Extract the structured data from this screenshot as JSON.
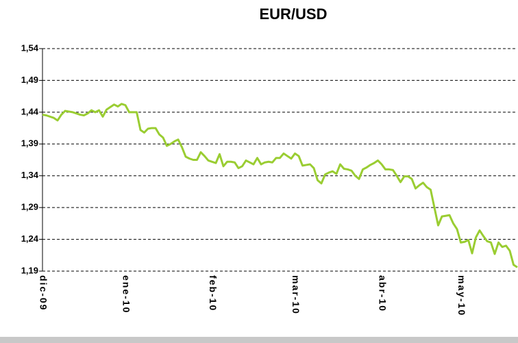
{
  "chart_data": {
    "type": "line",
    "title": "EUR/USD",
    "categories": [
      "dic-09",
      null,
      null,
      null,
      null,
      null,
      null,
      null,
      null,
      null,
      null,
      null,
      null,
      null,
      null,
      null,
      null,
      null,
      null,
      null,
      null,
      null,
      "ene-10",
      null,
      null,
      null,
      null,
      null,
      null,
      null,
      null,
      null,
      null,
      null,
      null,
      null,
      null,
      null,
      null,
      null,
      null,
      null,
      null,
      null,
      null,
      "feb-10",
      null,
      null,
      null,
      null,
      null,
      null,
      null,
      null,
      null,
      null,
      null,
      null,
      null,
      null,
      null,
      null,
      null,
      null,
      null,
      null,
      null,
      "mar-10",
      null,
      null,
      null,
      null,
      null,
      null,
      null,
      null,
      null,
      null,
      null,
      null,
      null,
      null,
      null,
      null,
      null,
      null,
      null,
      null,
      null,
      null,
      "abr-10",
      null,
      null,
      null,
      null,
      null,
      null,
      null,
      null,
      null,
      null,
      null,
      null,
      null,
      null,
      null,
      null,
      null,
      null,
      null,
      null,
      "may-10",
      null,
      null,
      null,
      null,
      null,
      null,
      null,
      null,
      null,
      null,
      null,
      null,
      null,
      null,
      null
    ],
    "series": [
      {
        "name": "EUR/USD",
        "color": "#9acd32",
        "values": [
          1.436,
          1.435,
          1.433,
          1.431,
          1.427,
          1.436,
          1.442,
          1.441,
          1.44,
          1.438,
          1.436,
          1.435,
          1.438,
          1.443,
          1.44,
          1.443,
          1.433,
          1.444,
          1.448,
          1.452,
          1.449,
          1.453,
          1.451,
          1.44,
          1.44,
          1.44,
          1.412,
          1.408,
          1.414,
          1.415,
          1.415,
          1.405,
          1.4,
          1.387,
          1.39,
          1.394,
          1.397,
          1.385,
          1.37,
          1.367,
          1.365,
          1.365,
          1.377,
          1.371,
          1.364,
          1.362,
          1.36,
          1.374,
          1.355,
          1.362,
          1.362,
          1.361,
          1.352,
          1.355,
          1.364,
          1.361,
          1.358,
          1.368,
          1.358,
          1.361,
          1.362,
          1.361,
          1.368,
          1.368,
          1.375,
          1.371,
          1.367,
          1.375,
          1.371,
          1.356,
          1.357,
          1.358,
          1.352,
          1.333,
          1.328,
          1.342,
          1.345,
          1.347,
          1.343,
          1.358,
          1.351,
          1.35,
          1.348,
          1.34,
          1.335,
          1.35,
          1.353,
          1.357,
          1.36,
          1.364,
          1.358,
          1.35,
          1.35,
          1.349,
          1.34,
          1.33,
          1.339,
          1.339,
          1.335,
          1.32,
          1.325,
          1.329,
          1.322,
          1.318,
          1.29,
          1.262,
          1.276,
          1.277,
          1.278,
          1.265,
          1.256,
          1.235,
          1.236,
          1.239,
          1.218,
          1.243,
          1.254,
          1.245,
          1.237,
          1.235,
          1.217,
          1.235,
          1.228,
          1.23,
          1.222,
          1.2,
          1.196
        ]
      }
    ],
    "ylim": [
      1.19,
      1.54
    ],
    "yticks": [
      {
        "value": 1.19,
        "label": "1,19"
      },
      {
        "value": 1.24,
        "label": "1,24"
      },
      {
        "value": 1.29,
        "label": "1,29"
      },
      {
        "value": 1.34,
        "label": "1,34"
      },
      {
        "value": 1.39,
        "label": "1,39"
      },
      {
        "value": 1.44,
        "label": "1,44"
      },
      {
        "value": 1.49,
        "label": "1,49"
      },
      {
        "value": 1.54,
        "label": "1,54"
      }
    ],
    "grid": true
  }
}
